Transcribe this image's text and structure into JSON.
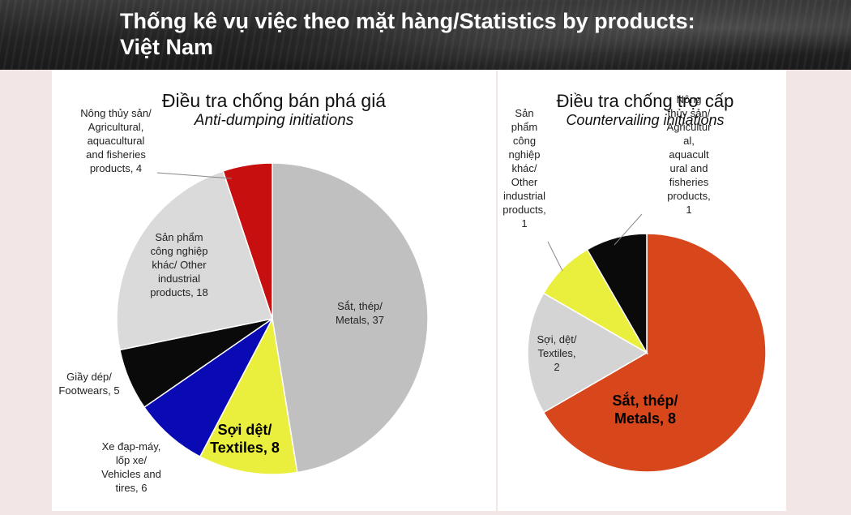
{
  "header": {
    "title_line1": "Thống kê vụ việc theo mặt hàng/Statistics by products:",
    "title_line2": "Việt Nam"
  },
  "chart_data": [
    {
      "type": "pie",
      "title": "Điều tra chống bán phá giá",
      "subtitle": "Anti-dumping initiations",
      "slices": [
        {
          "label_lines": [
            "Sắt, thép/",
            "Metals, 37"
          ],
          "value": 37,
          "color": "#c0c0c0"
        },
        {
          "label_lines": [
            "Sợi dệt/",
            "Textiles, 8"
          ],
          "value": 8,
          "color": "#eaee3c"
        },
        {
          "label_lines": [
            "Xe đạp-máy,",
            "lốp xe/",
            "Vehicles and",
            "tires, 6"
          ],
          "value": 6,
          "color": "#0a0ab4"
        },
        {
          "label_lines": [
            "Giầy dép/",
            "Footwears, 5"
          ],
          "value": 5,
          "color": "#0a0a0a"
        },
        {
          "label_lines": [
            "Sản phẩm",
            "công nghiệp",
            "khác/ Other",
            "industrial",
            "products, 18"
          ],
          "value": 18,
          "color": "#dadada"
        },
        {
          "label_lines": [
            "Nông thủy sản/",
            "Agricultural,",
            "aquacultural",
            "and fisheries",
            "products, 4"
          ],
          "value": 4,
          "color": "#c80f0f"
        }
      ]
    },
    {
      "type": "pie",
      "title": "Điều tra chống trợ cấp",
      "subtitle": "Countervailing initiations",
      "slices": [
        {
          "label_lines": [
            "Sắt, thép/",
            "Metals, 8"
          ],
          "value": 8,
          "color": "#d8471c"
        },
        {
          "label_lines": [
            "Sợi, dệt/",
            "Textiles,",
            "2"
          ],
          "value": 2,
          "color": "#d4d4d4"
        },
        {
          "label_lines": [
            "Sản",
            "phẩm",
            "công",
            "nghiệp",
            "khác/",
            "Other",
            "industrial",
            "products,",
            "1"
          ],
          "value": 1,
          "color": "#eaee3c"
        },
        {
          "label_lines": [
            "Nông",
            "thủy sản/",
            "Agricultur",
            "al,",
            "aquacult",
            "ural and",
            "fisheries",
            "products,",
            "1"
          ],
          "value": 1,
          "color": "#0a0a0a"
        }
      ]
    }
  ]
}
